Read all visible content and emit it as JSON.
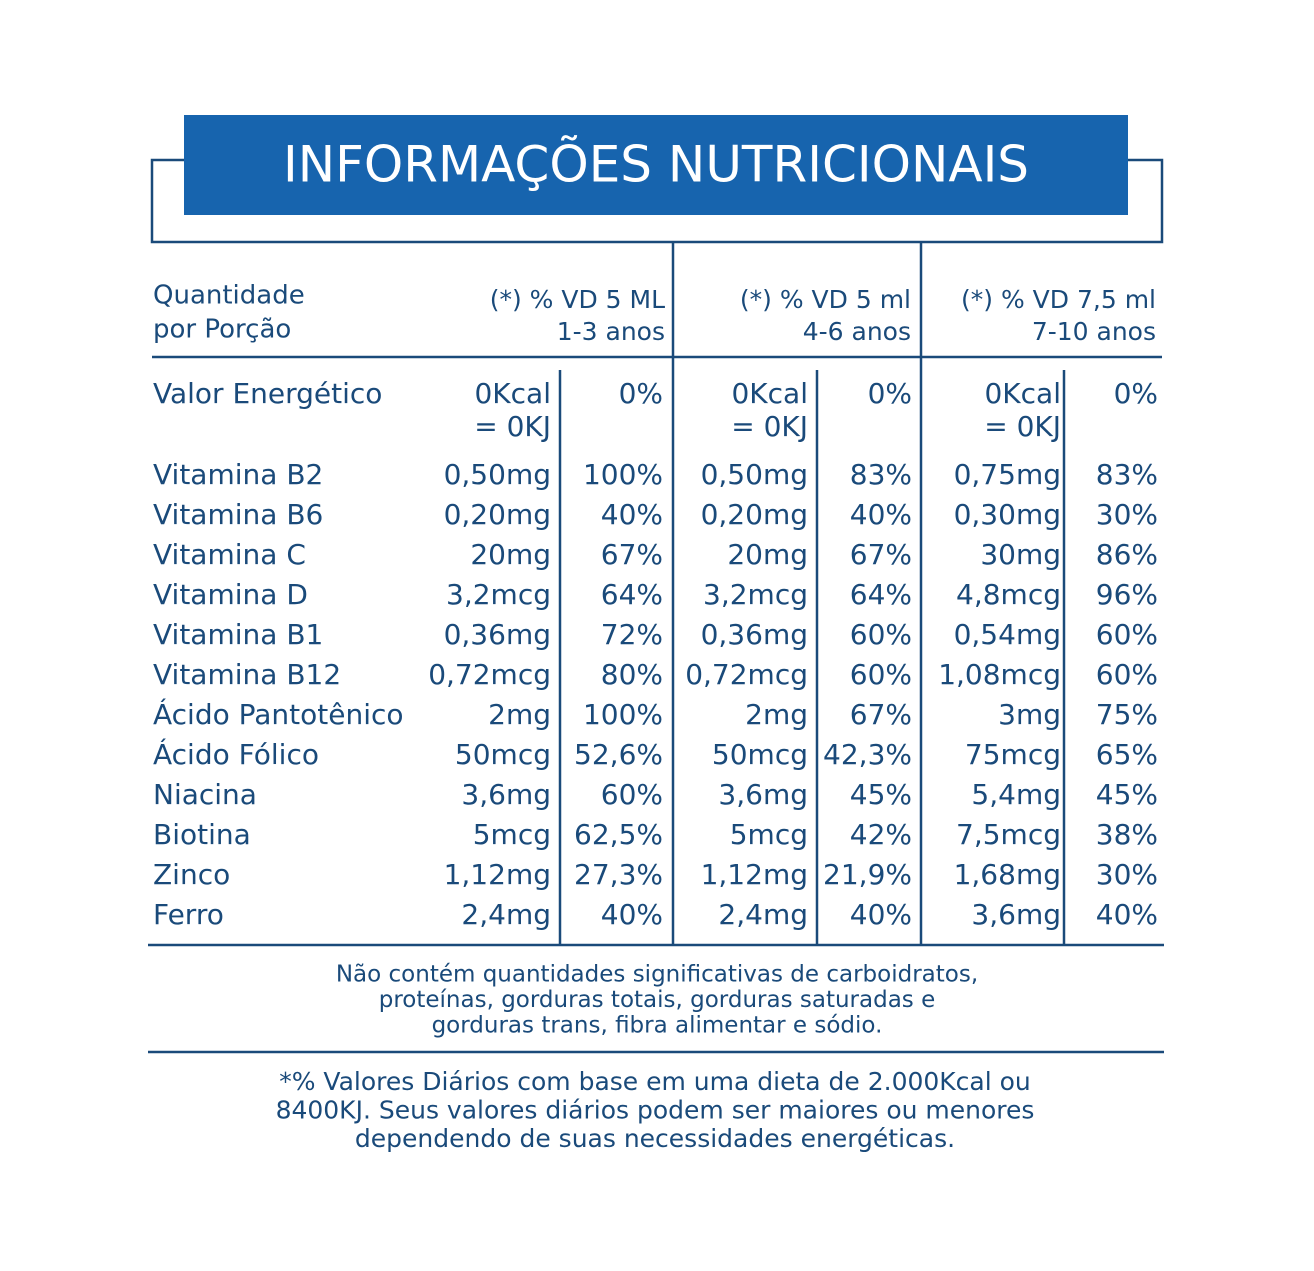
{
  "title": "INFORMAÇÕES NUTRICIONAIS",
  "header": {
    "label": [
      "Quantidade",
      "por Porção"
    ],
    "columns": [
      [
        "(*) % VD 5 ML",
        "1-3 anos"
      ],
      [
        "(*) % VD 5 ml",
        "4-6 anos"
      ],
      [
        "(*) % VD 7,5 ml",
        "7-10 anos"
      ]
    ]
  },
  "rows": [
    [
      "Valor Energético",
      [
        "0Kcal",
        "= 0KJ"
      ],
      "0%",
      [
        "0Kcal",
        "= 0KJ"
      ],
      "0%",
      [
        "0Kcal",
        "= 0KJ"
      ],
      "0%"
    ],
    [
      "Vitamina B2",
      "0,50mg",
      "100%",
      "0,50mg",
      "83%",
      "0,75mg",
      "83%"
    ],
    [
      "Vitamina B6",
      "0,20mg",
      "40%",
      "0,20mg",
      "40%",
      "0,30mg",
      "30%"
    ],
    [
      "Vitamina C",
      "20mg",
      "67%",
      "20mg",
      "67%",
      "30mg",
      "86%"
    ],
    [
      "Vitamina D",
      "3,2mcg",
      "64%",
      "3,2mcg",
      "64%",
      "4,8mcg",
      "96%"
    ],
    [
      "Vitamina B1",
      "0,36mg",
      "72%",
      "0,36mg",
      "60%",
      "0,54mg",
      "60%"
    ],
    [
      "Vitamina B12",
      "0,72mcg",
      "80%",
      "0,72mcg",
      "60%",
      "1,08mcg",
      "60%"
    ],
    [
      "Ácido Pantotênico",
      "2mg",
      "100%",
      "2mg",
      "67%",
      "3mg",
      "75%"
    ],
    [
      "Ácido Fólico",
      "50mcg",
      "52,6%",
      "50mcg",
      "42,3%",
      "75mcg",
      "65%"
    ],
    [
      "Niacina",
      "3,6mg",
      "60%",
      "3,6mg",
      "45%",
      "5,4mg",
      "45%"
    ],
    [
      "Biotina",
      "5mcg",
      "62,5%",
      "5mcg",
      "42%",
      "7,5mcg",
      "38%"
    ],
    [
      "Zinco",
      "1,12mg",
      "27,3%",
      "1,12mg",
      "21,9%",
      "1,68mg",
      "30%"
    ],
    [
      "Ferro",
      "2,4mg",
      "40%",
      "2,4mg",
      "40%",
      "3,6mg",
      "40%"
    ]
  ],
  "note": [
    "Não contém quantidades significativas de carboidratos,",
    "proteínas, gorduras totais, gorduras saturadas e",
    "gorduras trans, fibra alimentar e sódio."
  ],
  "footer": [
    "*% Valores Diários com base em uma dieta de 2.000Kcal ou",
    "8400KJ. Seus valores diários podem ser maiores ou menores",
    "dependendo de suas necessidades energéticas."
  ]
}
